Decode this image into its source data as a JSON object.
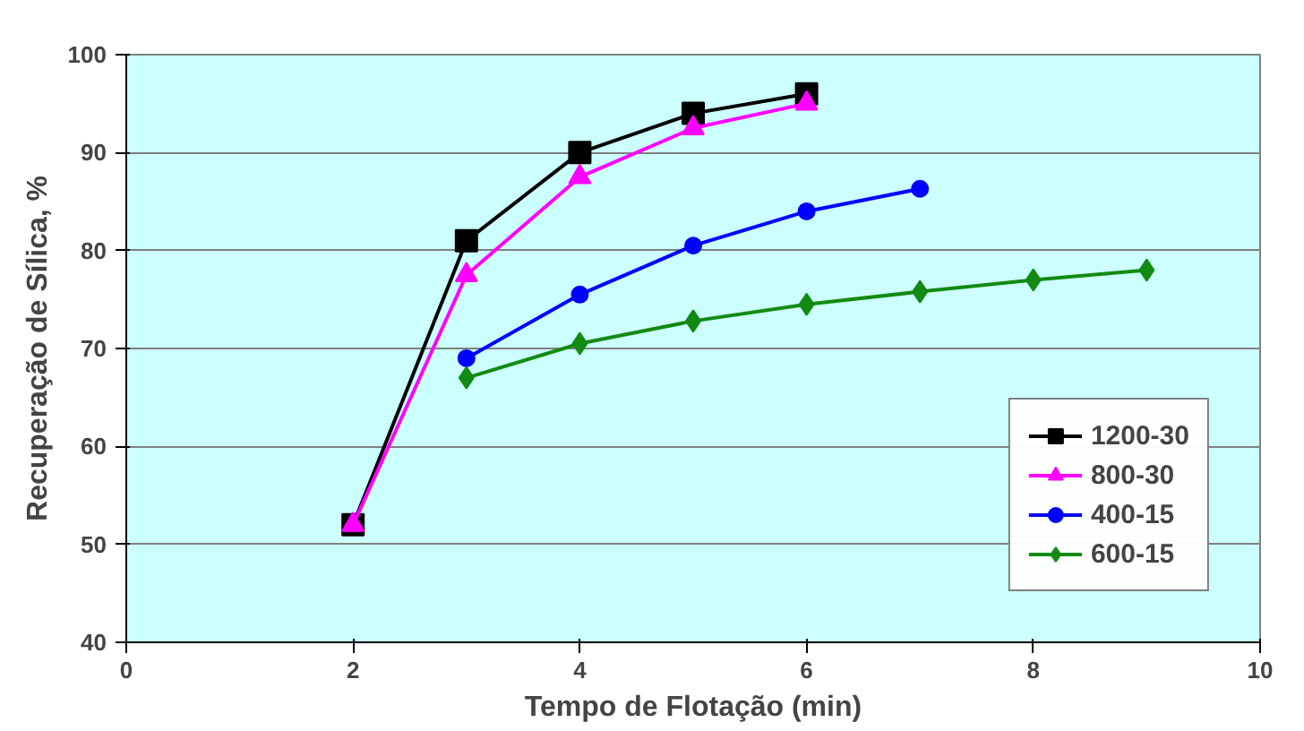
{
  "chart_data": {
    "type": "line",
    "xlabel": "Tempo de Flotação (min)",
    "ylabel": "Recuperação de Sílica, %",
    "xlim": [
      0,
      10
    ],
    "xticks": [
      0,
      2,
      4,
      6,
      8,
      10
    ],
    "ylim": [
      40,
      100
    ],
    "yticks": [
      40,
      50,
      60,
      70,
      80,
      90,
      100
    ],
    "grid": "y",
    "legend": "right",
    "line_style": "solid",
    "series": [
      {
        "name": "1200-30",
        "color": "#000000",
        "marker": "square",
        "x": [
          2,
          3,
          4,
          5,
          6
        ],
        "values": [
          52,
          81,
          90,
          94,
          96
        ]
      },
      {
        "name": "800-30",
        "color": "#ff00ff",
        "marker": "triangle",
        "x": [
          2,
          3,
          4,
          5,
          6
        ],
        "values": [
          52,
          77.5,
          87.5,
          92.5,
          95
        ]
      },
      {
        "name": "400-15",
        "color": "#0000ff",
        "marker": "circle",
        "x": [
          3,
          4,
          5,
          6,
          7
        ],
        "values": [
          69,
          75.5,
          80.5,
          84,
          86.3
        ]
      },
      {
        "name": "600-15",
        "color": "#138a13",
        "marker": "diamond",
        "x": [
          3,
          4,
          5,
          6,
          7,
          8,
          9
        ],
        "values": [
          67,
          70.5,
          72.8,
          74.5,
          75.8,
          77,
          78
        ]
      }
    ]
  }
}
